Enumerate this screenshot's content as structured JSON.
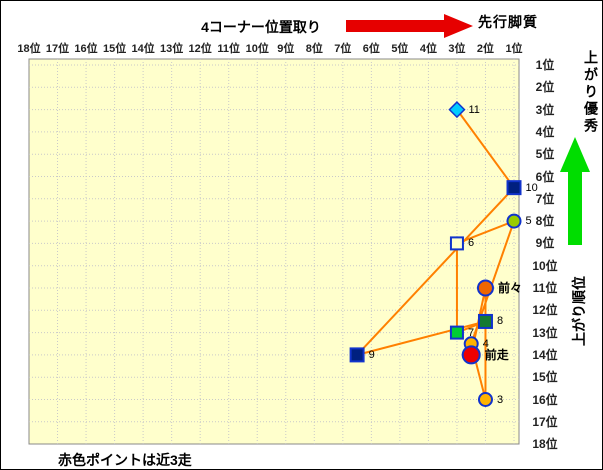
{
  "header": {
    "title": "4コーナー位置取り",
    "front_runner_label": "先行脚質"
  },
  "right_side": {
    "agari_good_label": "上がり優秀",
    "agari_rank_label": "上がり順位"
  },
  "footer": {
    "note": "赤色ポイントは近3走"
  },
  "colors": {
    "red_arrow": "#e60000",
    "red_arrow_outline": "#7a0000",
    "green_arrow": "#00dd00",
    "green_arrow_outline": "#007700",
    "plot_bg": "#ffffcc",
    "plot_border": "#888888",
    "grid": "#c9c9c9",
    "connector_line": "#ff8000",
    "marker_stroke": "#1133cc"
  },
  "chart_data": {
    "type": "scatter",
    "title": "4コーナー位置取り",
    "x_axis": {
      "label": "4コーナー位置取り",
      "reversed": true,
      "range": [
        18,
        1
      ],
      "ticks": [
        "18位",
        "17位",
        "16位",
        "15位",
        "14位",
        "13位",
        "12位",
        "11位",
        "10位",
        "9位",
        "8位",
        "7位",
        "6位",
        "5位",
        "4位",
        "3位",
        "2位",
        "1位"
      ]
    },
    "y_axis": {
      "label": "上がり順位",
      "range": [
        1,
        18
      ],
      "ticks": [
        "1位",
        "2位",
        "3位",
        "4位",
        "5位",
        "6位",
        "7位",
        "8位",
        "9位",
        "10位",
        "11位",
        "12位",
        "13位",
        "14位",
        "15位",
        "16位",
        "17位",
        "18位"
      ]
    },
    "grid": true,
    "points": [
      {
        "label": "11",
        "x": 3,
        "y": 3,
        "shape": "diamond",
        "fill": "#00ccff",
        "size": 13,
        "emphasis": false
      },
      {
        "label": "10",
        "x": 1,
        "y": 6.5,
        "shape": "square",
        "fill": "#002080",
        "size": 13,
        "emphasis": false
      },
      {
        "label": "9",
        "x": 6.5,
        "y": 14,
        "shape": "square",
        "fill": "#002080",
        "size": 13,
        "emphasis": false
      },
      {
        "label": "8",
        "x": 2,
        "y": 12.5,
        "shape": "square",
        "fill": "#147a33",
        "size": 13,
        "emphasis": false
      },
      {
        "label": "7",
        "x": 3,
        "y": 13,
        "shape": "square",
        "fill": "#00cc33",
        "size": 12,
        "emphasis": false
      },
      {
        "label": "6",
        "x": 3,
        "y": 9,
        "shape": "square",
        "fill": "#ffffcc",
        "size": 12,
        "emphasis": false
      },
      {
        "label": "5",
        "x": 1,
        "y": 8,
        "shape": "circle",
        "fill": "#99cc00",
        "size": 13,
        "emphasis": false
      },
      {
        "label": "4",
        "x": 2.5,
        "y": 13.5,
        "shape": "circle",
        "fill": "#ffb300",
        "size": 13,
        "emphasis": false
      },
      {
        "label": "3",
        "x": 2,
        "y": 16,
        "shape": "circle",
        "fill": "#ffb300",
        "size": 13,
        "emphasis": false
      },
      {
        "label": "前々",
        "x": 2,
        "y": 11,
        "shape": "circle",
        "fill": "#ee6600",
        "size": 15,
        "emphasis": true
      },
      {
        "label": "前走",
        "x": 2.5,
        "y": 14,
        "shape": "circle",
        "fill": "#ee0000",
        "size": 17,
        "emphasis": true
      }
    ],
    "connect_order": [
      "11",
      "10",
      "9",
      "8",
      "7",
      "6",
      "5",
      "4",
      "3",
      "前々",
      "前走"
    ],
    "note": "赤色ポイントは近3走"
  }
}
